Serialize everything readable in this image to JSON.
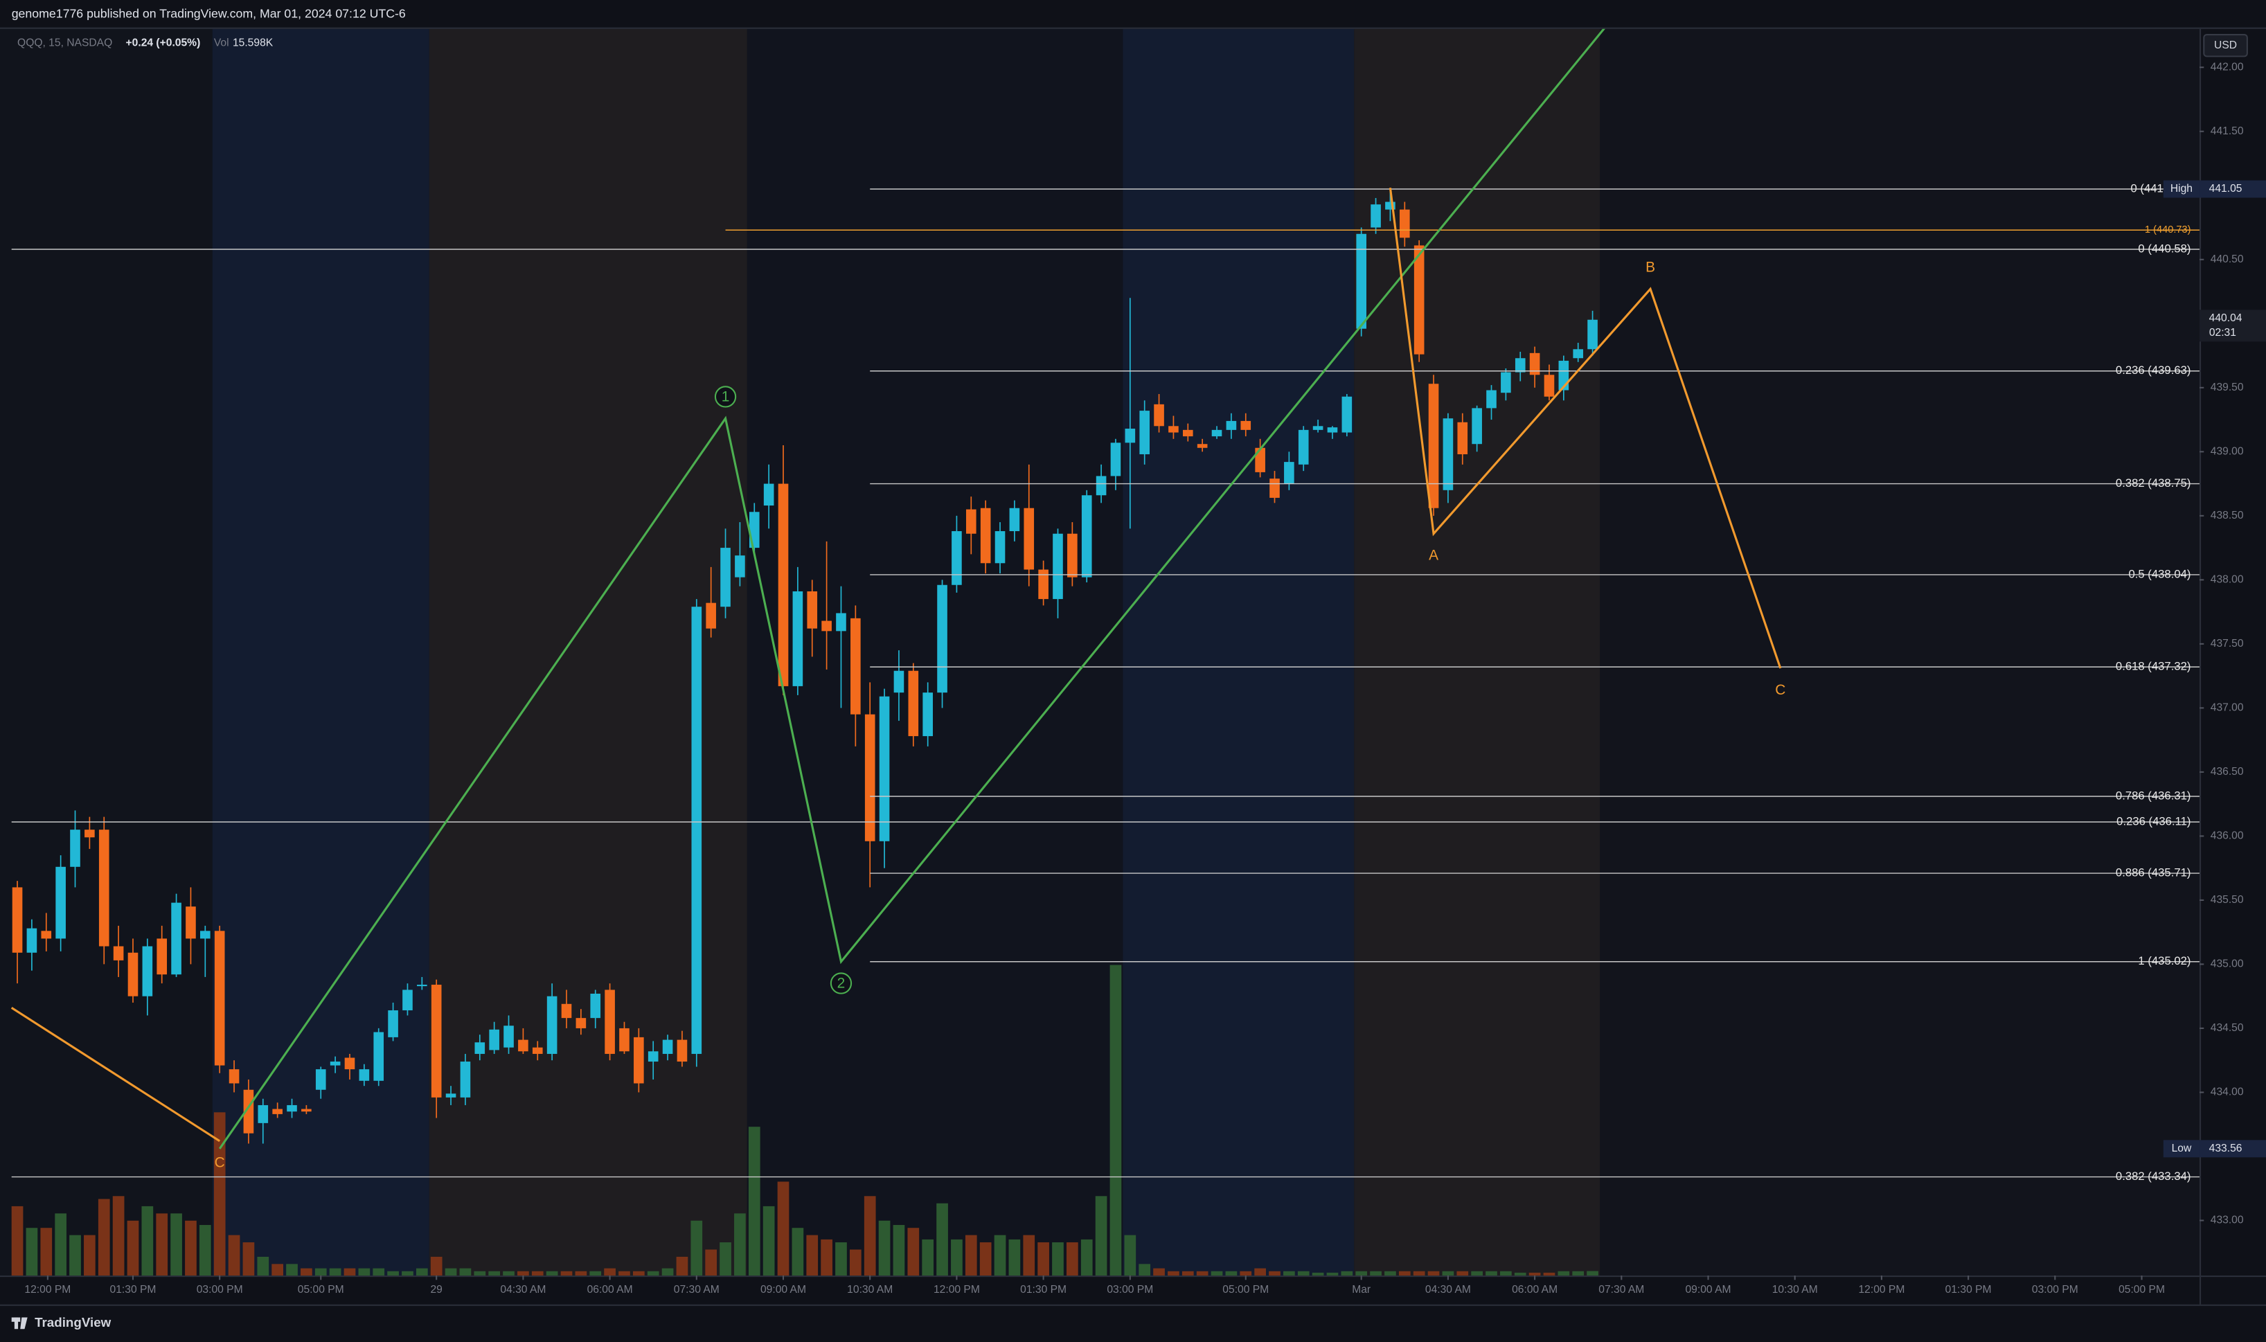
{
  "chart_data": {
    "type": "candlestick",
    "title": "genome1776 published on TradingView.com, Mar 01, 2024 07:12 UTC-6",
    "symbol": "QQQ, 15, NASDAQ",
    "change": "+0.24 (+0.05%)",
    "volume_label": "Vol",
    "volume_value": "15.598K",
    "currency": "USD",
    "footer": "TradingView",
    "up_color": "#22b8d6",
    "down_color": "#f26b1d",
    "volume_up_color": "#2d5a31",
    "volume_down_color": "#7a3318",
    "xlim": [
      -1.2,
      151
    ],
    "ylim": [
      432.57,
      442.3
    ],
    "volume_ylim": [
      0,
      4315
    ],
    "yticks": [
      {
        "value": 442,
        "label": "442.00"
      },
      {
        "value": 441.5,
        "label": "441.50"
      },
      {
        "value": 440.5,
        "label": "440.50"
      },
      {
        "value": 439.5,
        "label": "439.50"
      },
      {
        "value": 439,
        "label": "439.00"
      },
      {
        "value": 438.5,
        "label": "438.50"
      },
      {
        "value": 438,
        "label": "438.00"
      },
      {
        "value": 437.5,
        "label": "437.50"
      },
      {
        "value": 437,
        "label": "437.00"
      },
      {
        "value": 436.5,
        "label": "436.50"
      },
      {
        "value": 436,
        "label": "436.00"
      },
      {
        "value": 435.5,
        "label": "435.50"
      },
      {
        "value": 435,
        "label": "435.00"
      },
      {
        "value": 434.5,
        "label": "434.50"
      },
      {
        "value": 434,
        "label": "434.00"
      },
      {
        "value": 433,
        "label": "433.00"
      }
    ],
    "xticks": [
      {
        "value": 2.1,
        "label": "12:00 PM"
      },
      {
        "value": 8,
        "label": "01:30 PM"
      },
      {
        "value": 14,
        "label": "03:00 PM"
      },
      {
        "value": 21,
        "label": "05:00 PM"
      },
      {
        "value": 29,
        "label": "29"
      },
      {
        "value": 35,
        "label": "04:30 AM"
      },
      {
        "value": 41,
        "label": "06:00 AM"
      },
      {
        "value": 47,
        "label": "07:30 AM"
      },
      {
        "value": 53,
        "label": "09:00 AM"
      },
      {
        "value": 59,
        "label": "10:30 AM"
      },
      {
        "value": 65,
        "label": "12:00 PM"
      },
      {
        "value": 71,
        "label": "01:30 PM"
      },
      {
        "value": 77,
        "label": "03:00 PM"
      },
      {
        "value": 85,
        "label": "05:00 PM"
      },
      {
        "value": 93,
        "label": "Mar"
      },
      {
        "value": 99,
        "label": "04:30 AM"
      },
      {
        "value": 105,
        "label": "06:00 AM"
      },
      {
        "value": 111,
        "label": "07:30 AM"
      },
      {
        "value": 117,
        "label": "09:00 AM"
      },
      {
        "value": 123,
        "label": "10:30 AM"
      },
      {
        "value": 129,
        "label": "12:00 PM"
      },
      {
        "value": 135,
        "label": "01:30 PM"
      },
      {
        "value": 141,
        "label": "03:00 PM"
      },
      {
        "value": 147,
        "label": "05:00 PM"
      }
    ],
    "price_labels": [
      {
        "value": 441.05,
        "tag": "High"
      },
      {
        "value": 440.04,
        "tag": "02:31"
      },
      {
        "value": 433.56,
        "tag": "Low"
      }
    ],
    "levels": [
      {
        "value": 441.05,
        "label": "0 (441",
        "x_start": 59,
        "color": "#c8c8c8"
      },
      {
        "value": 440.73,
        "label": "1 (440.73)",
        "x_start": 49,
        "color": "#f0a030"
      },
      {
        "value": 440.58,
        "label": "0 (440.58)",
        "x_start": -0.4,
        "color": "#c8c8c8"
      },
      {
        "value": 439.63,
        "label": "0.236 (439.63)",
        "x_start": 59,
        "color": "#c8c8c8"
      },
      {
        "value": 438.75,
        "label": "0.382 (438.75)",
        "x_start": 59,
        "color": "#c8c8c8"
      },
      {
        "value": 438.04,
        "label": "0.5 (438.04)",
        "x_start": 59,
        "color": "#c8c8c8"
      },
      {
        "value": 437.32,
        "label": "0.618 (437.32)",
        "x_start": 59,
        "color": "#c8c8c8"
      },
      {
        "value": 436.31,
        "label": "0.786 (436.31)",
        "x_start": 59,
        "color": "#c8c8c8"
      },
      {
        "value": 436.11,
        "label": "0.236 (436.11)",
        "x_start": -0.4,
        "color": "#c8c8c8"
      },
      {
        "value": 435.71,
        "label": "0.886 (435.71)",
        "x_start": 59,
        "color": "#c8c8c8"
      },
      {
        "value": 435.02,
        "label": "1 (435.02)",
        "x_start": 59,
        "color": "#c8c8c8"
      },
      {
        "value": 433.34,
        "label": "0.382 (433.34)",
        "x_start": -0.4,
        "color": "#c8c8c8"
      }
    ],
    "waves": [
      {
        "color": "#4caf50",
        "circled": true,
        "x": [
          14,
          49,
          57,
          110
        ],
        "y": [
          433.56,
          439.26,
          435.02,
          442.33
        ],
        "labels": [
          null,
          "1",
          "2",
          null
        ]
      },
      {
        "color": "#f29a2e",
        "circled": false,
        "x": [
          -0.4,
          14
        ],
        "y": [
          434.66,
          433.62
        ],
        "labels": [
          null,
          "C"
        ]
      },
      {
        "color": "#f29a2e",
        "circled": false,
        "x": [
          95,
          98,
          113,
          122
        ],
        "y": [
          441.06,
          438.36,
          440.27,
          437.31
        ],
        "labels": [
          null,
          "A",
          "B",
          "C"
        ]
      }
    ],
    "ohlc": [
      [
        435.6,
        435.65,
        434.85,
        435.09
      ],
      [
        435.09,
        435.35,
        434.95,
        435.28
      ],
      [
        435.26,
        435.4,
        435.1,
        435.2
      ],
      [
        435.2,
        435.85,
        435.1,
        435.76
      ],
      [
        435.76,
        436.2,
        435.6,
        436.05
      ],
      [
        436.05,
        436.15,
        435.9,
        435.99
      ],
      [
        436.05,
        436.15,
        435.0,
        435.14
      ],
      [
        435.14,
        435.3,
        434.9,
        435.03
      ],
      [
        435.09,
        435.2,
        434.7,
        434.75
      ],
      [
        434.75,
        435.2,
        434.6,
        435.14
      ],
      [
        435.2,
        435.3,
        434.85,
        434.92
      ],
      [
        434.92,
        435.55,
        434.9,
        435.48
      ],
      [
        435.45,
        435.6,
        435.0,
        435.2
      ],
      [
        435.2,
        435.3,
        434.9,
        435.26
      ],
      [
        435.26,
        435.3,
        434.15,
        434.21
      ],
      [
        434.18,
        434.25,
        434.0,
        434.07
      ],
      [
        434.02,
        434.1,
        433.6,
        433.68
      ],
      [
        433.76,
        433.95,
        433.6,
        433.9
      ],
      [
        433.87,
        433.92,
        433.8,
        433.83
      ],
      [
        433.85,
        433.95,
        433.8,
        433.9
      ],
      [
        433.87,
        433.9,
        433.83,
        433.85
      ],
      [
        434.02,
        434.2,
        433.95,
        434.18
      ],
      [
        434.21,
        434.28,
        434.15,
        434.24
      ],
      [
        434.27,
        434.3,
        434.1,
        434.18
      ],
      [
        434.09,
        434.22,
        434.05,
        434.18
      ],
      [
        434.09,
        434.5,
        434.05,
        434.47
      ],
      [
        434.43,
        434.7,
        434.4,
        434.64
      ],
      [
        434.64,
        434.85,
        434.6,
        434.8
      ],
      [
        434.83,
        434.9,
        434.8,
        434.84
      ],
      [
        434.84,
        434.88,
        433.8,
        433.96
      ],
      [
        433.96,
        434.05,
        433.9,
        433.99
      ],
      [
        433.96,
        434.3,
        433.9,
        434.24
      ],
      [
        434.3,
        434.45,
        434.25,
        434.39
      ],
      [
        434.33,
        434.55,
        434.3,
        434.49
      ],
      [
        434.35,
        434.6,
        434.3,
        434.52
      ],
      [
        434.41,
        434.5,
        434.3,
        434.32
      ],
      [
        434.35,
        434.4,
        434.25,
        434.3
      ],
      [
        434.3,
        434.85,
        434.25,
        434.75
      ],
      [
        434.69,
        434.8,
        434.5,
        434.58
      ],
      [
        434.58,
        434.65,
        434.45,
        434.5
      ],
      [
        434.58,
        434.8,
        434.5,
        434.77
      ],
      [
        434.8,
        434.85,
        434.25,
        434.3
      ],
      [
        434.5,
        434.55,
        434.3,
        434.32
      ],
      [
        434.43,
        434.5,
        434.0,
        434.07
      ],
      [
        434.24,
        434.4,
        434.1,
        434.32
      ],
      [
        434.3,
        434.45,
        434.25,
        434.41
      ],
      [
        434.41,
        434.48,
        434.2,
        434.24
      ],
      [
        434.3,
        437.85,
        434.2,
        437.79
      ],
      [
        437.82,
        438.1,
        437.55,
        437.62
      ],
      [
        437.79,
        438.4,
        437.7,
        438.25
      ],
      [
        438.02,
        438.45,
        437.95,
        438.19
      ],
      [
        438.25,
        438.6,
        438.2,
        438.53
      ],
      [
        438.58,
        438.9,
        438.4,
        438.75
      ],
      [
        438.75,
        439.05,
        437.1,
        437.17
      ],
      [
        437.17,
        438.1,
        437.1,
        437.91
      ],
      [
        437.91,
        438.0,
        437.4,
        437.62
      ],
      [
        437.68,
        438.3,
        437.3,
        437.6
      ],
      [
        437.6,
        437.95,
        437.0,
        437.74
      ],
      [
        437.7,
        437.8,
        436.7,
        436.95
      ],
      [
        436.95,
        437.2,
        435.6,
        435.96
      ],
      [
        435.96,
        437.15,
        435.75,
        437.09
      ],
      [
        437.12,
        437.45,
        436.9,
        437.29
      ],
      [
        437.29,
        437.35,
        436.7,
        436.78
      ],
      [
        436.78,
        437.2,
        436.7,
        437.12
      ],
      [
        437.12,
        438.0,
        437.0,
        437.96
      ],
      [
        437.96,
        438.5,
        437.9,
        438.38
      ],
      [
        438.55,
        438.65,
        438.2,
        438.36
      ],
      [
        438.56,
        438.62,
        438.05,
        438.13
      ],
      [
        438.13,
        438.45,
        438.05,
        438.38
      ],
      [
        438.38,
        438.62,
        438.3,
        438.56
      ],
      [
        438.56,
        438.9,
        437.95,
        438.08
      ],
      [
        438.08,
        438.15,
        437.8,
        437.85
      ],
      [
        437.85,
        438.4,
        437.7,
        438.36
      ],
      [
        438.36,
        438.45,
        437.95,
        438.02
      ],
      [
        438.02,
        438.7,
        437.98,
        438.66
      ],
      [
        438.66,
        438.9,
        438.6,
        438.81
      ],
      [
        438.81,
        439.1,
        438.7,
        439.07
      ],
      [
        439.07,
        440.2,
        438.4,
        439.18
      ],
      [
        438.98,
        439.4,
        438.9,
        439.32
      ],
      [
        439.37,
        439.45,
        439.15,
        439.2
      ],
      [
        439.2,
        439.28,
        439.1,
        439.15
      ],
      [
        439.17,
        439.22,
        439.08,
        439.12
      ],
      [
        439.06,
        439.1,
        439.0,
        439.03
      ],
      [
        439.12,
        439.2,
        439.1,
        439.17
      ],
      [
        439.17,
        439.3,
        439.1,
        439.24
      ],
      [
        439.24,
        439.3,
        439.12,
        439.17
      ],
      [
        439.03,
        439.1,
        438.8,
        438.84
      ],
      [
        438.79,
        438.85,
        438.6,
        438.64
      ],
      [
        438.75,
        439.0,
        438.7,
        438.92
      ],
      [
        438.9,
        439.2,
        438.85,
        439.17
      ],
      [
        439.17,
        439.25,
        439.15,
        439.2
      ],
      [
        439.15,
        439.2,
        439.1,
        439.19
      ],
      [
        439.15,
        439.45,
        439.12,
        439.43
      ],
      [
        439.96,
        440.75,
        439.9,
        440.7
      ],
      [
        440.75,
        440.98,
        440.7,
        440.93
      ],
      [
        440.89,
        441.05,
        440.8,
        440.95
      ],
      [
        440.89,
        440.95,
        440.6,
        440.67
      ],
      [
        440.61,
        440.65,
        439.7,
        439.76
      ],
      [
        439.53,
        439.6,
        438.5,
        438.56
      ],
      [
        438.7,
        439.3,
        438.6,
        439.26
      ],
      [
        439.23,
        439.3,
        438.9,
        438.98
      ],
      [
        439.06,
        439.36,
        439.0,
        439.34
      ],
      [
        439.34,
        439.52,
        439.25,
        439.48
      ],
      [
        439.46,
        439.65,
        439.4,
        439.62
      ],
      [
        439.62,
        439.78,
        439.55,
        439.73
      ],
      [
        439.77,
        439.82,
        439.5,
        439.6
      ],
      [
        439.6,
        439.68,
        439.4,
        439.43
      ],
      [
        439.48,
        439.75,
        439.4,
        439.71
      ],
      [
        439.73,
        439.85,
        439.7,
        439.8
      ],
      [
        439.8,
        440.1,
        439.75,
        440.03
      ]
    ],
    "volume": [
      240,
      165,
      165,
      215,
      140,
      140,
      265,
      275,
      190,
      240,
      215,
      215,
      190,
      175,
      565,
      140,
      115,
      65,
      40,
      40,
      25,
      25,
      25,
      25,
      25,
      25,
      15,
      15,
      25,
      65,
      25,
      25,
      15,
      15,
      15,
      15,
      15,
      15,
      15,
      15,
      15,
      25,
      15,
      15,
      15,
      25,
      65,
      190,
      90,
      115,
      215,
      515,
      240,
      325,
      165,
      140,
      125,
      115,
      90,
      275,
      190,
      175,
      165,
      125,
      250,
      125,
      140,
      115,
      140,
      125,
      140,
      115,
      115,
      115,
      125,
      275,
      1075,
      140,
      40,
      25,
      15,
      15,
      15,
      15,
      15,
      15,
      25,
      15,
      15,
      15,
      10,
      10,
      15,
      15,
      15,
      15,
      15,
      15,
      15,
      15,
      15,
      15,
      15,
      15,
      10,
      10,
      10,
      15,
      15,
      15.598
    ]
  }
}
